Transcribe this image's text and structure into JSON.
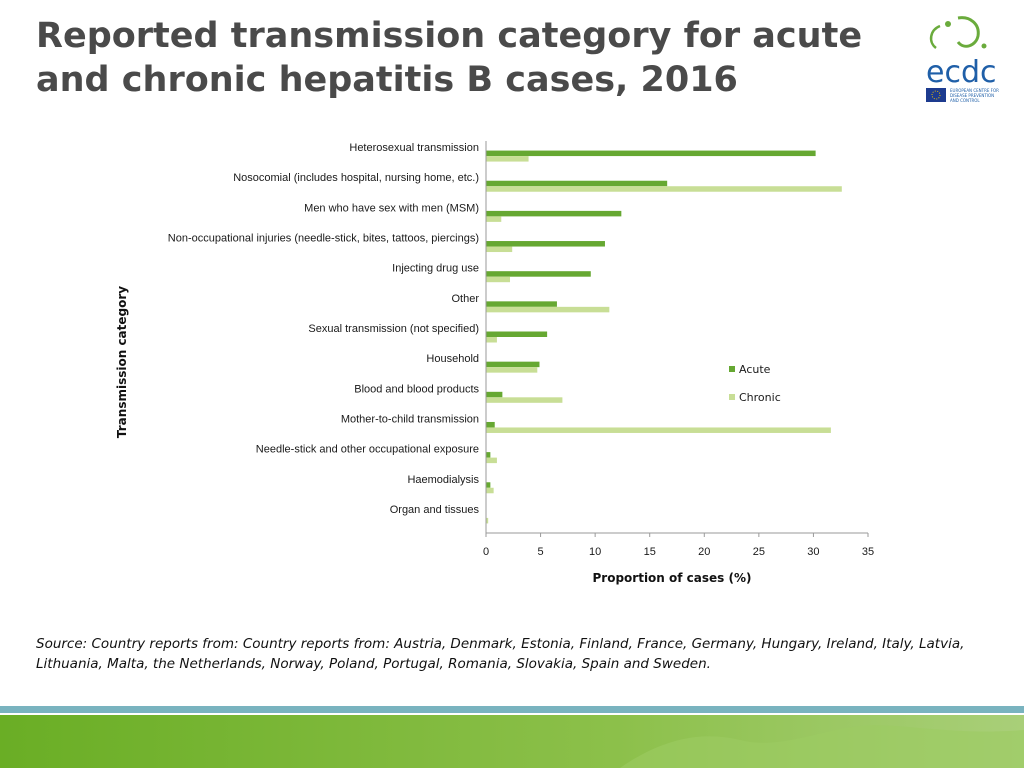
{
  "slide": {
    "title": "Reported transmission category for acute and chronic hepatitis B cases, 2016",
    "source": "Source: Country reports from: Country reports from: Austria, Denmark, Estonia, Finland, France, Germany, Hungary, Ireland, Italy, Latvia, Lithuania, Malta, the Netherlands, Norway, Poland, Portugal, Romania, Slovakia, Spain and Sweden.",
    "logo": {
      "name": "ecdc",
      "tagline_lines": [
        "EUROPEAN CENTRE FOR",
        "DISEASE PREVENTION",
        "AND CONTROL"
      ],
      "colors": {
        "text": "#1f5fa8",
        "leaf": "#6aab3c",
        "flag": "#1d3b8f"
      }
    },
    "colors": {
      "title": "#4a4a4a",
      "footer_blue": "#79b3bf",
      "footer_green": "#79b62e"
    }
  },
  "chart_data": {
    "type": "bar",
    "orientation": "horizontal",
    "title": "",
    "xlabel": "Proportion of cases (%)",
    "ylabel": "Transmission category",
    "xlim": [
      0,
      35
    ],
    "xticks": [
      0,
      5,
      10,
      15,
      20,
      25,
      30,
      35
    ],
    "grid": false,
    "legend_position": "right",
    "categories": [
      "Heterosexual transmission",
      "Nosocomial (includes hospital, nursing home, etc.)",
      "Men who have sex with men (MSM)",
      "Non-occupational injuries (needle-stick, bites, tattoos, piercings)",
      "Injecting drug use",
      "Other",
      "Sexual transmission (not specified)",
      "Household",
      "Blood and blood products",
      "Mother-to-child transmission",
      "Needle-stick and other occupational exposure",
      "Haemodialysis",
      "Organ and tissues"
    ],
    "series": [
      {
        "name": "Acute",
        "color": "#66a832",
        "values": [
          30.2,
          16.6,
          12.4,
          10.9,
          9.6,
          6.5,
          5.6,
          4.9,
          1.5,
          0.8,
          0.4,
          0.4,
          0.0
        ]
      },
      {
        "name": "Chronic",
        "color": "#c8de96",
        "values": [
          3.9,
          32.6,
          1.4,
          2.4,
          2.2,
          11.3,
          1.0,
          4.7,
          7.0,
          31.6,
          1.0,
          0.7,
          0.2
        ]
      }
    ]
  }
}
